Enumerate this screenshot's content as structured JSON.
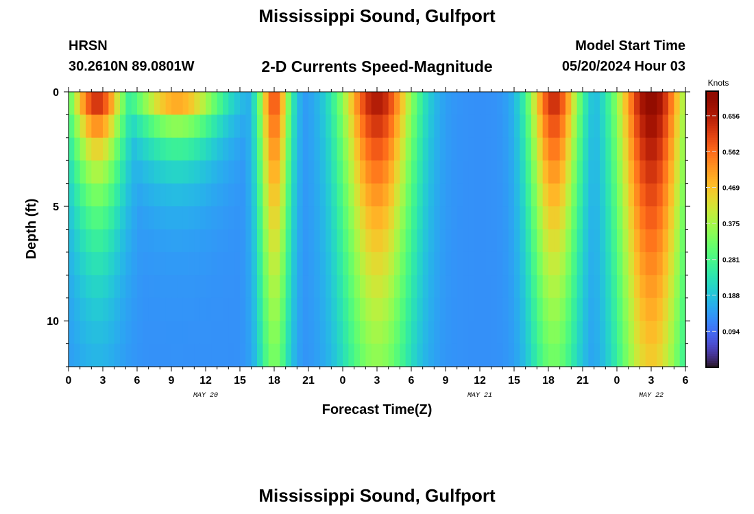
{
  "header": {
    "title": "Mississippi Sound, Gulfport",
    "station": "HRSN",
    "coordinates": "30.2610N  89.0801W",
    "subtitle": "2-D Currents Speed-Magnitude",
    "model_start_label": "Model Start Time",
    "model_start_value": "05/20/2024 Hour 03",
    "repeated_title": "Mississippi Sound, Gulfport"
  },
  "chart_data": {
    "type": "heatmap",
    "xlabel": "Forecast Time(Z)",
    "ylabel": "Depth (ft)",
    "colorbar_label": "Knots",
    "xlim": [
      0,
      54
    ],
    "ylim": [
      0,
      12
    ],
    "x_ticks": [
      {
        "value": 0,
        "label": "0"
      },
      {
        "value": 3,
        "label": "3"
      },
      {
        "value": 6,
        "label": "6"
      },
      {
        "value": 9,
        "label": "9"
      },
      {
        "value": 12,
        "label": "12"
      },
      {
        "value": 15,
        "label": "15"
      },
      {
        "value": 18,
        "label": "18"
      },
      {
        "value": 21,
        "label": "21"
      },
      {
        "value": 24,
        "label": "0"
      },
      {
        "value": 27,
        "label": "3"
      },
      {
        "value": 30,
        "label": "6"
      },
      {
        "value": 33,
        "label": "9"
      },
      {
        "value": 36,
        "label": "12"
      },
      {
        "value": 39,
        "label": "15"
      },
      {
        "value": 42,
        "label": "18"
      },
      {
        "value": 45,
        "label": "21"
      },
      {
        "value": 48,
        "label": "0"
      },
      {
        "value": 51,
        "label": "3"
      },
      {
        "value": 54,
        "label": "6"
      }
    ],
    "date_labels": [
      {
        "value": 12,
        "label": "MAY 20"
      },
      {
        "value": 36,
        "label": "MAY 21"
      },
      {
        "value": 51,
        "label": "MAY 22"
      }
    ],
    "y_ticks": [
      {
        "value": 0,
        "label": "0"
      },
      {
        "value": 5,
        "label": "5"
      },
      {
        "value": 10,
        "label": "10"
      }
    ],
    "colorbar": {
      "min": 0.0,
      "max": 0.72,
      "ticks": [
        0.094,
        0.188,
        0.281,
        0.375,
        0.469,
        0.562,
        0.656
      ],
      "tick_labels": [
        "0.094",
        "0.188",
        "0.281",
        "0.375",
        "0.469",
        "0.562",
        "0.656"
      ],
      "colormap": "turbo"
    },
    "depths": [
      0.5,
      1.5,
      2.5,
      3.5,
      4.5,
      5.5,
      6.5,
      7.5,
      8.5,
      9.5,
      10.5,
      11.5
    ],
    "speed_components": [
      {
        "center": 2.5,
        "width": 1.7,
        "amplitude": 0.68,
        "depth_scale": 4.5
      },
      {
        "center": 9.5,
        "width": 2.8,
        "amplitude": 0.6,
        "depth_scale": 2.0
      },
      {
        "center": 18.0,
        "width": 1.0,
        "amplitude": 0.6,
        "depth_scale": 14.0
      },
      {
        "center": 27.0,
        "width": 2.3,
        "amplitude": 0.68,
        "depth_scale": 13.0
      },
      {
        "center": 42.5,
        "width": 1.6,
        "amplitude": 0.65,
        "depth_scale": 12.0
      },
      {
        "center": 51.0,
        "width": 2.2,
        "amplitude": 0.72,
        "depth_scale": 20.0
      }
    ],
    "background_speed": 0.13
  }
}
